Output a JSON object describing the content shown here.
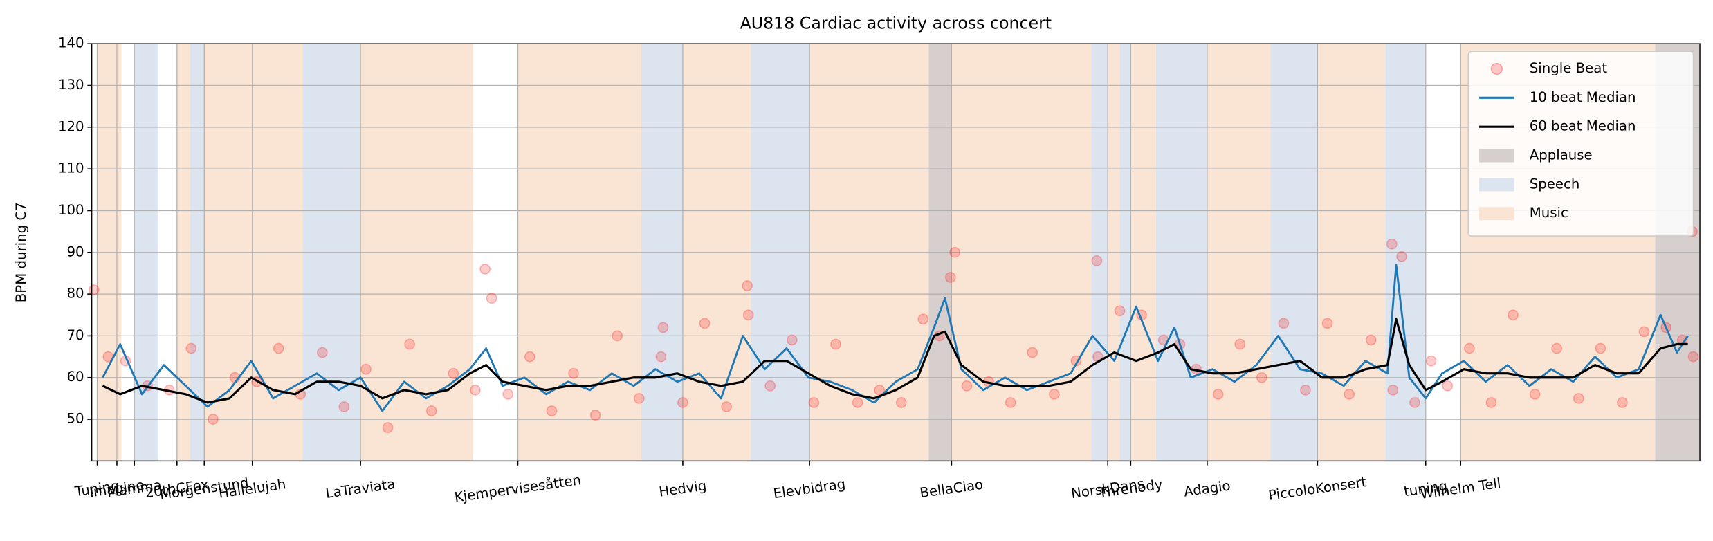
{
  "chart_data": {
    "type": "line",
    "title": "AU818 Cardiac activity across concert",
    "ylabel": "BPM during C7",
    "xlim": [
      0,
      1472
    ],
    "ylim": [
      40,
      140
    ],
    "yticks": [
      50,
      60,
      70,
      80,
      90,
      100,
      110,
      120,
      130,
      140
    ],
    "xticks": [
      {
        "value": 5,
        "label": "Tuning"
      },
      {
        "value": 23,
        "label": "Imagine"
      },
      {
        "value": 39,
        "label": "Mamma"
      },
      {
        "value": 78,
        "label": "20thCFox"
      },
      {
        "value": 103,
        "label": "Morgenstund"
      },
      {
        "value": 147,
        "label": "Hallelujah"
      },
      {
        "value": 246,
        "label": "LaTraviata"
      },
      {
        "value": 390,
        "label": "Kjempervisesåtten"
      },
      {
        "value": 541,
        "label": "Hedvig"
      },
      {
        "value": 657,
        "label": "Elevbidrag"
      },
      {
        "value": 787,
        "label": "BellaCiao"
      },
      {
        "value": 930,
        "label": "NorskDans"
      },
      {
        "value": 951,
        "label": "Threnody"
      },
      {
        "value": 1021,
        "label": "Adagio"
      },
      {
        "value": 1122,
        "label": "PiccoloKonsert"
      },
      {
        "value": 1221,
        "label": "tuning"
      },
      {
        "value": 1253,
        "label": "Wilhelm Tell"
      }
    ],
    "grid": true,
    "legend": "upper right",
    "regions": [
      {
        "name": "Applause",
        "color": "#d6cfcd",
        "spans": [
          [
            766,
            787
          ],
          [
            1431,
            1472
          ]
        ]
      },
      {
        "name": "Speech",
        "color": "#dbe4ef",
        "spans": [
          [
            39,
            61
          ],
          [
            90,
            103
          ],
          [
            193,
            246
          ],
          [
            503,
            541
          ],
          [
            603,
            657
          ],
          [
            915,
            930
          ],
          [
            941,
            951
          ],
          [
            974,
            1021
          ],
          [
            1079,
            1122
          ],
          [
            1184,
            1221
          ]
        ]
      },
      {
        "name": "Music",
        "color": "#fae5d4",
        "spans": [
          [
            5,
            27
          ],
          [
            78,
            90
          ],
          [
            103,
            193
          ],
          [
            246,
            349
          ],
          [
            390,
            503
          ],
          [
            541,
            603
          ],
          [
            657,
            766
          ],
          [
            787,
            915
          ],
          [
            930,
            941
          ],
          [
            951,
            974
          ],
          [
            1021,
            1079
          ],
          [
            1122,
            1184
          ],
          [
            1253,
            1431
          ]
        ]
      }
    ],
    "series": [
      {
        "name": "Single Beat",
        "kind": "scatter",
        "color": "#ff0000",
        "x": [
          15,
          31,
          51,
          71,
          91,
          111,
          131,
          151,
          171,
          191,
          211,
          231,
          251,
          271,
          291,
          311,
          331,
          351,
          366,
          381,
          401,
          421,
          441,
          461,
          481,
          501,
          521,
          541,
          561,
          581,
          601,
          621,
          641,
          661,
          681,
          701,
          721,
          741,
          761,
          776,
          786,
          801,
          821,
          841,
          861,
          881,
          901,
          921,
          941,
          961,
          981,
          996,
          1011,
          1031,
          1051,
          1071,
          1091,
          1111,
          1131,
          1151,
          1171,
          1191,
          1199,
          1211,
          1226,
          1241,
          1261,
          1281,
          1301,
          1321,
          1341,
          1361,
          1381,
          1401,
          1421,
          1441,
          1456,
          1466,
          2,
          360,
          523,
          600,
          790,
          920,
          1190,
          1465
        ],
        "values": [
          65,
          64,
          58,
          57,
          67,
          50,
          60,
          59,
          67,
          56,
          66,
          53,
          62,
          48,
          68,
          52,
          61,
          57,
          79,
          56,
          65,
          52,
          61,
          51,
          70,
          55,
          65,
          54,
          73,
          53,
          75,
          58,
          69,
          54,
          68,
          54,
          57,
          54,
          74,
          70,
          84,
          58,
          59,
          54,
          66,
          56,
          64,
          65,
          76,
          75,
          69,
          68,
          62,
          56,
          68,
          60,
          73,
          57,
          73,
          56,
          69,
          57,
          89,
          54,
          64,
          58,
          67,
          54,
          75,
          56,
          67,
          55,
          67,
          54,
          71,
          72,
          69,
          65,
          81,
          86,
          72,
          82,
          90,
          88,
          92,
          95
        ]
      },
      {
        "name": "10 beat Median",
        "kind": "line",
        "color": "#1f77b4",
        "x": [
          10,
          26,
          46,
          66,
          86,
          106,
          126,
          146,
          166,
          186,
          206,
          226,
          246,
          266,
          286,
          306,
          326,
          346,
          361,
          376,
          396,
          416,
          436,
          456,
          476,
          496,
          516,
          536,
          556,
          576,
          596,
          616,
          636,
          656,
          676,
          696,
          716,
          736,
          756,
          771,
          781,
          796,
          816,
          836,
          856,
          876,
          896,
          916,
          936,
          956,
          976,
          991,
          1006,
          1026,
          1046,
          1066,
          1086,
          1106,
          1126,
          1146,
          1166,
          1186,
          1194,
          1206,
          1221,
          1236,
          1256,
          1276,
          1296,
          1316,
          1336,
          1356,
          1376,
          1396,
          1416,
          1436,
          1451,
          1461
        ],
        "values": [
          60,
          68,
          56,
          63,
          58,
          53,
          57,
          64,
          55,
          58,
          61,
          57,
          60,
          52,
          59,
          55,
          58,
          62,
          67,
          58,
          60,
          56,
          59,
          57,
          61,
          58,
          62,
          59,
          61,
          55,
          70,
          62,
          67,
          60,
          59,
          57,
          54,
          59,
          62,
          72,
          79,
          62,
          57,
          60,
          57,
          59,
          61,
          70,
          64,
          77,
          64,
          72,
          60,
          62,
          59,
          63,
          70,
          62,
          61,
          58,
          64,
          61,
          87,
          60,
          55,
          61,
          64,
          59,
          63,
          58,
          62,
          59,
          65,
          60,
          62,
          75,
          66,
          70
        ]
      },
      {
        "name": "60 beat Median",
        "kind": "line",
        "color": "#000000",
        "x": [
          10,
          26,
          46,
          66,
          86,
          106,
          126,
          146,
          166,
          186,
          206,
          226,
          246,
          266,
          286,
          306,
          326,
          346,
          361,
          376,
          396,
          416,
          436,
          456,
          476,
          496,
          516,
          536,
          556,
          576,
          596,
          616,
          636,
          656,
          676,
          696,
          716,
          736,
          756,
          771,
          781,
          796,
          816,
          836,
          856,
          876,
          896,
          916,
          936,
          956,
          976,
          991,
          1006,
          1026,
          1046,
          1066,
          1086,
          1106,
          1126,
          1146,
          1166,
          1186,
          1194,
          1206,
          1221,
          1236,
          1256,
          1276,
          1296,
          1316,
          1336,
          1356,
          1376,
          1396,
          1416,
          1436,
          1451,
          1461
        ],
        "values": [
          58,
          56,
          58,
          57,
          56,
          54,
          55,
          60,
          57,
          56,
          59,
          59,
          58,
          55,
          57,
          56,
          57,
          61,
          63,
          59,
          58,
          57,
          58,
          58,
          59,
          60,
          60,
          61,
          59,
          58,
          59,
          64,
          64,
          61,
          58,
          56,
          55,
          57,
          60,
          70,
          71,
          63,
          59,
          58,
          58,
          58,
          59,
          63,
          66,
          64,
          66,
          68,
          62,
          61,
          61,
          62,
          63,
          64,
          60,
          60,
          62,
          63,
          74,
          63,
          57,
          59,
          62,
          61,
          61,
          60,
          60,
          60,
          63,
          61,
          61,
          67,
          68,
          68
        ]
      }
    ]
  }
}
